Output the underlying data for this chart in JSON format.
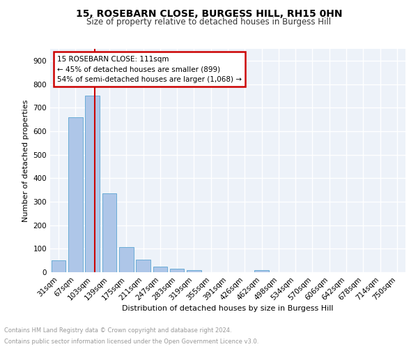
{
  "title": "15, ROSEBARN CLOSE, BURGESS HILL, RH15 0HN",
  "subtitle": "Size of property relative to detached houses in Burgess Hill",
  "xlabel": "Distribution of detached houses by size in Burgess Hill",
  "ylabel": "Number of detached properties",
  "footnote1": "Contains HM Land Registry data © Crown copyright and database right 2024.",
  "footnote2": "Contains public sector information licensed under the Open Government Licence v3.0.",
  "bar_labels": [
    "31sqm",
    "67sqm",
    "103sqm",
    "139sqm",
    "175sqm",
    "211sqm",
    "247sqm",
    "283sqm",
    "319sqm",
    "355sqm",
    "391sqm",
    "426sqm",
    "462sqm",
    "498sqm",
    "534sqm",
    "570sqm",
    "606sqm",
    "642sqm",
    "678sqm",
    "714sqm",
    "750sqm"
  ],
  "bar_values": [
    50,
    660,
    750,
    335,
    108,
    52,
    25,
    15,
    10,
    0,
    0,
    0,
    10,
    0,
    0,
    0,
    0,
    0,
    0,
    0,
    0
  ],
  "bar_color": "#aec6e8",
  "bar_edgecolor": "#6aacd6",
  "vline_x_index": 2,
  "vline_color": "#cc0000",
  "annotation_title": "15 ROSEBARN CLOSE: 111sqm",
  "annotation_line1": "← 45% of detached houses are smaller (899)",
  "annotation_line2": "54% of semi-detached houses are larger (1,068) →",
  "annotation_box_color": "#cc0000",
  "ylim": [
    0,
    950
  ],
  "yticks": [
    0,
    100,
    200,
    300,
    400,
    500,
    600,
    700,
    800,
    900
  ],
  "background_color": "#edf2f9",
  "grid_color": "#ffffff",
  "title_fontsize": 10,
  "subtitle_fontsize": 8.5,
  "ylabel_fontsize": 8,
  "xlabel_fontsize": 8,
  "tick_fontsize": 7.5,
  "footnote_fontsize": 6,
  "footnote_color": "#999999"
}
